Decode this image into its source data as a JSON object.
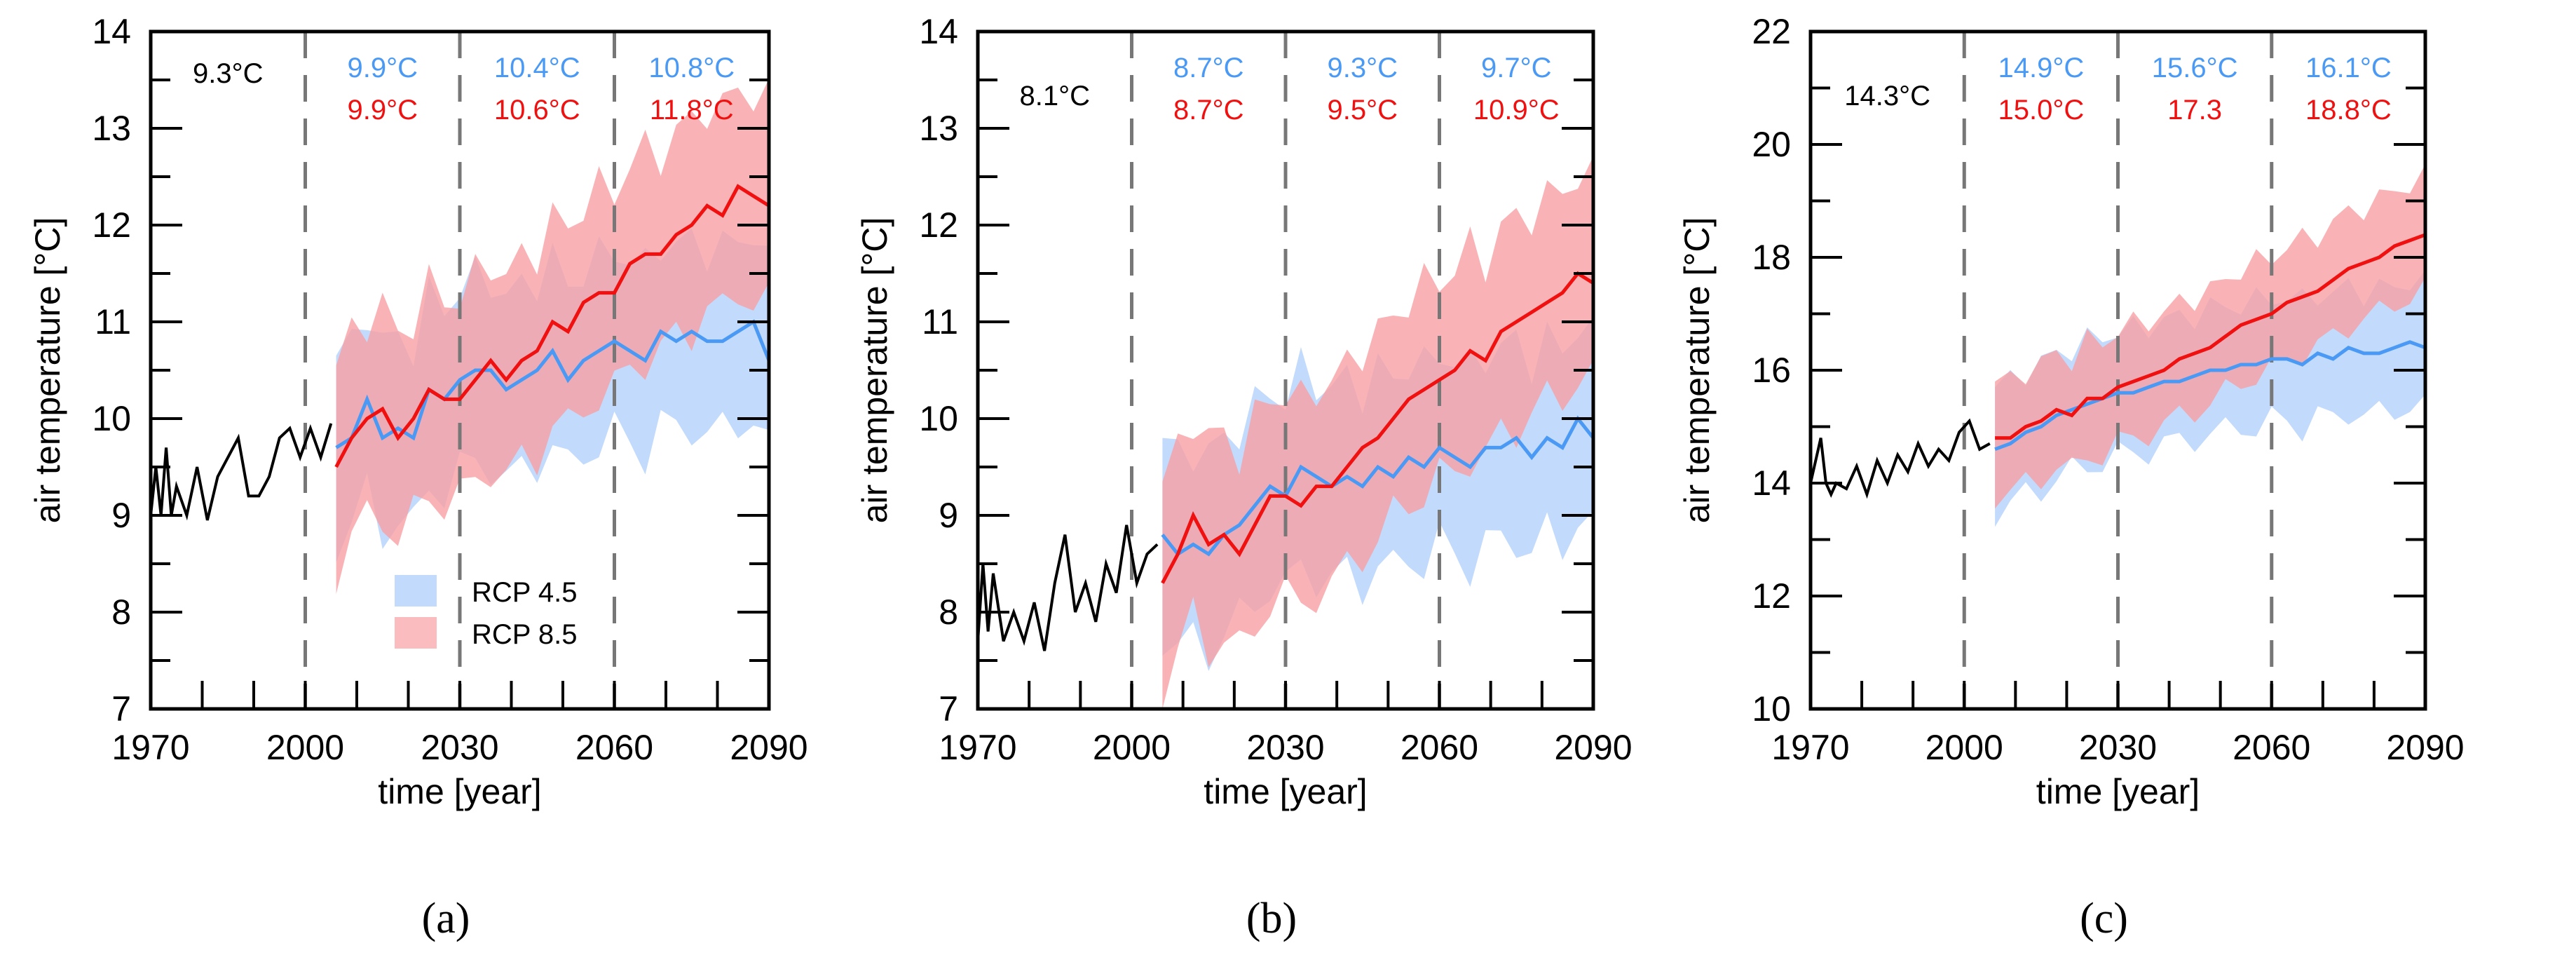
{
  "colors": {
    "rcp45": "#4a9af5",
    "rcp85": "#f01010",
    "rcp45_band": "#c2dafb",
    "rcp85_band": "#f8a0a4",
    "hist": "#000000"
  },
  "chart_data": [
    {
      "type": "line",
      "panel_label": "(a)",
      "xlabel": "time [year]",
      "ylabel": "air temperature [°C]",
      "xlim": [
        1970,
        2090
      ],
      "ylim": [
        7,
        14
      ],
      "xticks": [
        1970,
        2000,
        2030,
        2060,
        2090
      ],
      "yticks": [
        7,
        8,
        9,
        10,
        11,
        12,
        13,
        14
      ],
      "yminor": 0.5,
      "period_lines": [
        2000,
        2030,
        2060
      ],
      "legend": [
        "RCP 4.5",
        "RCP 8.5"
      ],
      "legend_position": "bottom-center",
      "annotations": {
        "hist": "9.3°C",
        "rcp45": [
          "9.9°C",
          "10.4°C",
          "10.8°C"
        ],
        "rcp85": [
          "9.9°C",
          "10.6°C",
          "11.8°C"
        ]
      },
      "hist": {
        "x": [
          1970,
          1971,
          1972,
          1973,
          1974,
          1975,
          1977,
          1979,
          1981,
          1983,
          1985,
          1987,
          1989,
          1991,
          1993,
          1995,
          1997,
          1999,
          2001,
          2003,
          2005
        ],
        "y": [
          9.0,
          9.5,
          9.0,
          9.7,
          9.0,
          9.3,
          9.0,
          9.5,
          8.95,
          9.4,
          9.6,
          9.8,
          9.2,
          9.2,
          9.4,
          9.8,
          9.9,
          9.6,
          9.9,
          9.6,
          9.95
        ]
      },
      "proj_x": [
        2006,
        2009,
        2012,
        2015,
        2018,
        2021,
        2024,
        2027,
        2030,
        2033,
        2036,
        2039,
        2042,
        2045,
        2048,
        2051,
        2054,
        2057,
        2060,
        2063,
        2066,
        2069,
        2072,
        2075,
        2078,
        2081,
        2084,
        2087,
        2090
      ],
      "series": [
        {
          "name": "RCP 4.5",
          "band_spread": 0.95,
          "values": [
            9.7,
            9.8,
            10.2,
            9.8,
            9.9,
            9.8,
            10.3,
            10.2,
            10.4,
            10.5,
            10.5,
            10.3,
            10.4,
            10.5,
            10.7,
            10.4,
            10.6,
            10.7,
            10.8,
            10.7,
            10.6,
            10.9,
            10.8,
            10.9,
            10.8,
            10.8,
            10.9,
            11.0,
            10.6
          ]
        },
        {
          "name": "RCP 8.5",
          "band_spread": 1.05,
          "values": [
            9.5,
            9.8,
            10.0,
            10.1,
            9.8,
            10.0,
            10.3,
            10.2,
            10.2,
            10.4,
            10.6,
            10.4,
            10.6,
            10.7,
            11.0,
            10.9,
            11.2,
            11.3,
            11.3,
            11.6,
            11.7,
            11.7,
            11.9,
            12.0,
            12.2,
            12.1,
            12.4,
            12.3,
            12.2
          ]
        }
      ]
    },
    {
      "type": "line",
      "panel_label": "(b)",
      "xlabel": "time [year]",
      "ylabel": "air temperature [°C]",
      "xlim": [
        1970,
        2090
      ],
      "ylim": [
        7,
        14
      ],
      "xticks": [
        1970,
        2000,
        2030,
        2060,
        2090
      ],
      "yticks": [
        7,
        8,
        9,
        10,
        11,
        12,
        13,
        14
      ],
      "yminor": 0.5,
      "period_lines": [
        2000,
        2030,
        2060
      ],
      "annotations": {
        "hist": "8.1°C",
        "rcp45": [
          "8.7°C",
          "9.3°C",
          "9.7°C"
        ],
        "rcp85": [
          "8.7°C",
          "9.5°C",
          "10.9°C"
        ]
      },
      "hist": {
        "x": [
          1970,
          1971,
          1972,
          1973,
          1975,
          1977,
          1979,
          1981,
          1983,
          1985,
          1987,
          1989,
          1991,
          1993,
          1995,
          1997,
          1999,
          2001,
          2003,
          2005
        ],
        "y": [
          7.7,
          8.5,
          7.8,
          8.4,
          7.7,
          8.0,
          7.7,
          8.1,
          7.6,
          8.3,
          8.8,
          8.0,
          8.3,
          7.9,
          8.5,
          8.2,
          8.9,
          8.3,
          8.6,
          8.7
        ]
      },
      "proj_x": [
        2006,
        2009,
        2012,
        2015,
        2018,
        2021,
        2024,
        2027,
        2030,
        2033,
        2036,
        2039,
        2042,
        2045,
        2048,
        2051,
        2054,
        2057,
        2060,
        2063,
        2066,
        2069,
        2072,
        2075,
        2078,
        2081,
        2084,
        2087,
        2090
      ],
      "series": [
        {
          "name": "RCP 4.5",
          "band_spread": 1.0,
          "values": [
            8.8,
            8.6,
            8.7,
            8.6,
            8.8,
            8.9,
            9.1,
            9.3,
            9.2,
            9.5,
            9.4,
            9.3,
            9.4,
            9.3,
            9.5,
            9.4,
            9.6,
            9.5,
            9.7,
            9.6,
            9.5,
            9.7,
            9.7,
            9.8,
            9.6,
            9.8,
            9.7,
            10.0,
            9.8
          ]
        },
        {
          "name": "RCP 8.5",
          "band_spread": 1.05,
          "values": [
            8.3,
            8.6,
            9.0,
            8.7,
            8.8,
            8.6,
            8.9,
            9.2,
            9.2,
            9.1,
            9.3,
            9.3,
            9.5,
            9.7,
            9.8,
            10.0,
            10.2,
            10.3,
            10.4,
            10.5,
            10.7,
            10.6,
            10.9,
            11.0,
            11.1,
            11.2,
            11.3,
            11.5,
            11.4
          ]
        }
      ]
    },
    {
      "type": "line",
      "panel_label": "(c)",
      "xlabel": "time [year]",
      "ylabel": "air temperature [°C]",
      "xlim": [
        1970,
        2090
      ],
      "ylim": [
        10,
        22
      ],
      "xticks": [
        1970,
        2000,
        2030,
        2060,
        2090
      ],
      "yticks": [
        10,
        12,
        14,
        16,
        18,
        20,
        22
      ],
      "yminor": 1,
      "period_lines": [
        2000,
        2030,
        2060
      ],
      "annotations": {
        "hist": "14.3°C",
        "rcp45": [
          "14.9°C",
          "15.6°C",
          "16.1°C"
        ],
        "rcp85": [
          "15.0°C",
          "17.3",
          "18.8°C"
        ]
      },
      "hist": {
        "x": [
          1970,
          1971,
          1972,
          1973,
          1974,
          1975,
          1977,
          1979,
          1981,
          1983,
          1985,
          1987,
          1989,
          1991,
          1993,
          1995,
          1997,
          1999,
          2001,
          2003,
          2005
        ],
        "y": [
          14.0,
          14.4,
          14.8,
          14.0,
          13.8,
          14.0,
          13.9,
          14.3,
          13.8,
          14.4,
          14.0,
          14.5,
          14.2,
          14.7,
          14.3,
          14.6,
          14.4,
          14.9,
          15.1,
          14.6,
          14.7
        ]
      },
      "proj_x": [
        2006,
        2009,
        2012,
        2015,
        2018,
        2021,
        2024,
        2027,
        2030,
        2033,
        2036,
        2039,
        2042,
        2045,
        2048,
        2051,
        2054,
        2057,
        2060,
        2063,
        2066,
        2069,
        2072,
        2075,
        2078,
        2081,
        2084,
        2087,
        2090
      ],
      "series": [
        {
          "name": "RCP 4.5",
          "band_spread": 1.1,
          "values": [
            14.6,
            14.7,
            14.9,
            15.0,
            15.2,
            15.3,
            15.4,
            15.5,
            15.6,
            15.6,
            15.7,
            15.8,
            15.8,
            15.9,
            16.0,
            16.0,
            16.1,
            16.1,
            16.2,
            16.2,
            16.1,
            16.3,
            16.2,
            16.4,
            16.3,
            16.3,
            16.4,
            16.5,
            16.4
          ]
        },
        {
          "name": "RCP 8.5",
          "band_spread": 1.0,
          "values": [
            14.8,
            14.8,
            15.0,
            15.1,
            15.3,
            15.2,
            15.5,
            15.5,
            15.7,
            15.8,
            15.9,
            16.0,
            16.2,
            16.3,
            16.4,
            16.6,
            16.8,
            16.9,
            17.0,
            17.2,
            17.3,
            17.4,
            17.6,
            17.8,
            17.9,
            18.0,
            18.2,
            18.3,
            18.4
          ]
        }
      ]
    }
  ]
}
